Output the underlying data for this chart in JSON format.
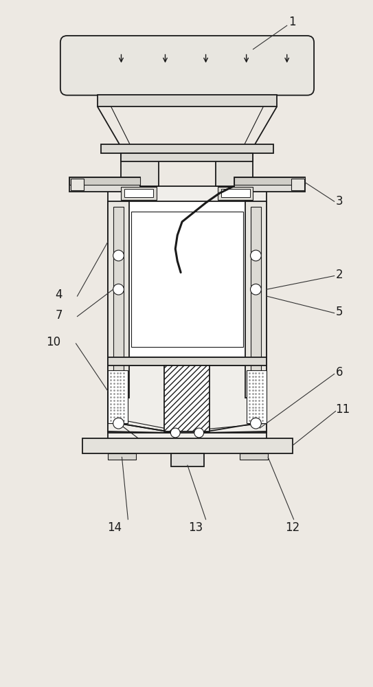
{
  "bg_color": "#ede9e3",
  "line_color": "#1a1a1a",
  "fig_width": 5.43,
  "fig_height": 10.0
}
